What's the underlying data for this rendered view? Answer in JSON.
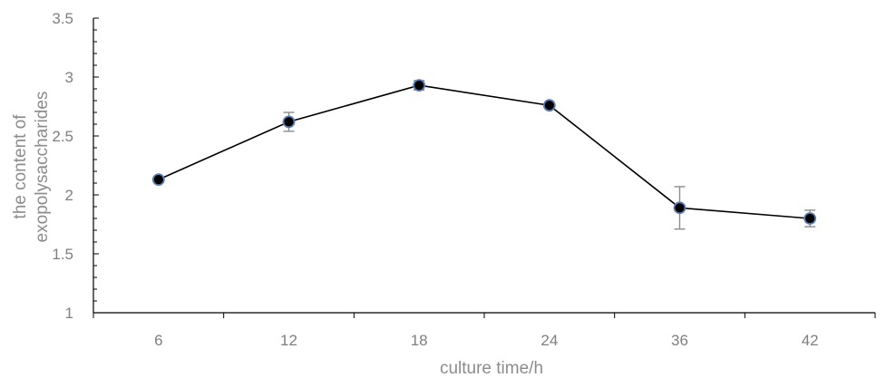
{
  "chart_data": {
    "type": "line",
    "title": "",
    "xlabel": "culture time/h",
    "ylabel": "the content of exopolysaccharides",
    "ylabel_lines": [
      "the content of",
      "exopolysaccharides"
    ],
    "categories": [
      "6",
      "12",
      "18",
      "24",
      "36",
      "42"
    ],
    "series": [
      {
        "values": [
          2.13,
          2.62,
          2.93,
          2.76,
          1.89,
          1.8
        ],
        "errors": [
          0.02,
          0.08,
          0.04,
          0.02,
          0.18,
          0.07
        ]
      }
    ],
    "ylim": [
      1,
      3.5
    ],
    "yticks": [
      "1",
      "1.5",
      "2",
      "2.5",
      "3",
      "3.5"
    ],
    "ytick_values": [
      1,
      1.5,
      2,
      2.5,
      3,
      3.5
    ],
    "grid": false,
    "legend": "none",
    "colors": {
      "line": "#000000",
      "marker_fill": "#000000",
      "marker_edge": "#5b7db1",
      "error_bar": "#8c8c8c",
      "tick_label": "#7f7f7f"
    }
  }
}
